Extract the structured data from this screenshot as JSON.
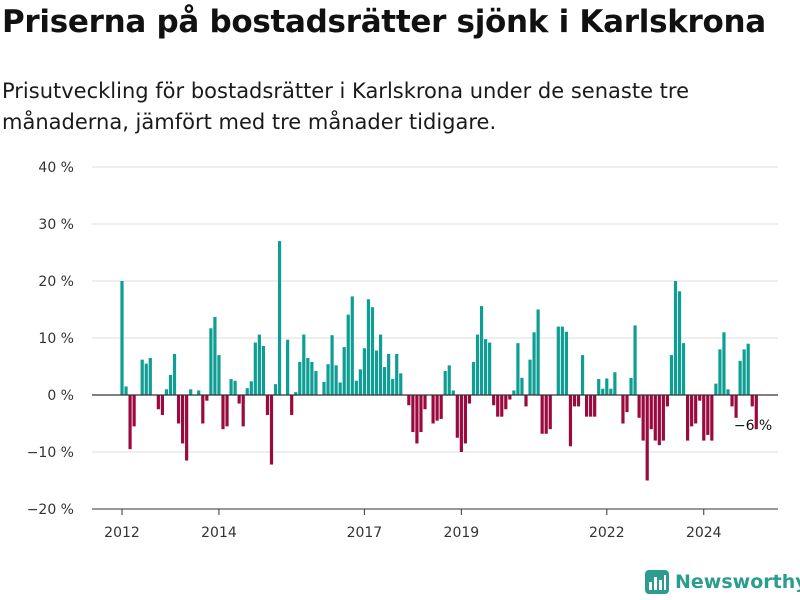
{
  "title": "Priserna på bostadsrätter sjönk i Karlskrona",
  "subtitle": "Prisutveckling för bostadsrätter i Karlskrona under de senaste tre månaderna, jämfört med tre månader tidigare.",
  "brand": "Newsworthy",
  "colors": {
    "positive": "#0e9e94",
    "negative": "#9b0a3f"
  },
  "chart_data": {
    "type": "bar",
    "title": "",
    "xlabel": "",
    "ylabel": "",
    "x_start": "2012-01",
    "x_step": "month",
    "ylim": [
      -20,
      40
    ],
    "y_ticks": [
      {
        "value": 40,
        "label": "40 %"
      },
      {
        "value": 30,
        "label": "30 %"
      },
      {
        "value": 20,
        "label": "20 %"
      },
      {
        "value": 10,
        "label": "10 %"
      },
      {
        "value": 0,
        "label": "0 %"
      },
      {
        "value": -10,
        "label": "−10 %"
      },
      {
        "value": -20,
        "label": "−20 %"
      }
    ],
    "x_ticks": [
      {
        "date": "2012-01",
        "label": "2012"
      },
      {
        "date": "2014-01",
        "label": "2014"
      },
      {
        "date": "2017-01",
        "label": "2017"
      },
      {
        "date": "2019-01",
        "label": "2019"
      },
      {
        "date": "2022-01",
        "label": "2022"
      },
      {
        "date": "2024-01",
        "label": "2024"
      }
    ],
    "grid": true,
    "legend": "none",
    "annotation": {
      "text": "−6 %",
      "date": "2025-01",
      "value": -6
    },
    "values": [
      20,
      1.5,
      -9.5,
      -5.5,
      0,
      6.2,
      5.5,
      6.5,
      0,
      -2.5,
      -3.5,
      1,
      3.5,
      7.2,
      -5,
      -8.5,
      -11.5,
      1,
      0,
      0.8,
      -5,
      -1,
      11.7,
      13.7,
      7,
      -6,
      -5.5,
      2.8,
      2.5,
      -1.5,
      -5.5,
      1.2,
      2.4,
      9.2,
      10.6,
      8.6,
      -3.5,
      -12.2,
      1.9,
      27,
      0,
      9.7,
      -3.5,
      0.5,
      5.8,
      10.6,
      6.5,
      5.8,
      4.2,
      0,
      2.3,
      5.4,
      10.5,
      5.2,
      2.2,
      8.4,
      14.1,
      17.3,
      2.5,
      4.5,
      8.2,
      16.8,
      15.4,
      7.8,
      10.6,
      4.9,
      7.2,
      2.8,
      7.2,
      3.8,
      0,
      -1.8,
      -6.5,
      -8.5,
      -6.5,
      -2.5,
      0,
      -5,
      -4.5,
      -4.2,
      4.2,
      5.2,
      0.8,
      -7.5,
      -10,
      -8.5,
      -1.5,
      5.8,
      10.6,
      15.6,
      9.8,
      9.2,
      -1.8,
      -3.8,
      -3.8,
      -2.5,
      -0.8,
      0.8,
      9.1,
      3,
      -2,
      6.2,
      11,
      15,
      -6.8,
      -6.8,
      -6,
      0,
      12,
      12,
      11.1,
      -9,
      -2,
      -2,
      7,
      -3.8,
      -3.8,
      -3.8,
      2.8,
      1.1,
      2.9,
      1.1,
      4,
      0,
      -5,
      -3,
      3,
      12.2,
      -4,
      -8,
      -15,
      -6,
      -8,
      -8.8,
      -8,
      -2,
      7,
      20,
      18.2,
      9.1,
      -8,
      -5.5,
      -5,
      -1,
      -8,
      -7,
      -8,
      2,
      8,
      11,
      1,
      -2,
      -4,
      6,
      8,
      9,
      -2,
      -6
    ]
  }
}
